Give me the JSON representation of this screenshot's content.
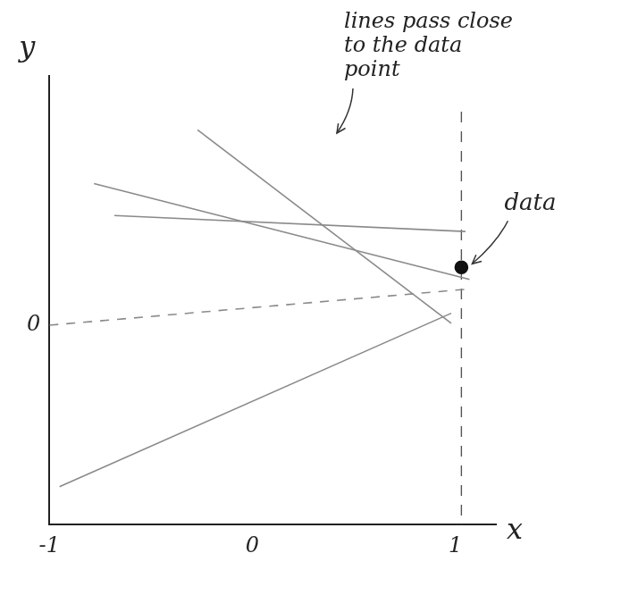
{
  "chart_data": {
    "type": "line",
    "x_label": "x",
    "y_label": "y",
    "xlim": [
      -1,
      1.2
    ],
    "ylim": [
      -1,
      1.25
    ],
    "xticks": [
      -1,
      0,
      1
    ],
    "yticks": [
      0
    ],
    "grid": false,
    "annotations": [
      "lines pass close to the data point",
      "data"
    ],
    "series": [
      {
        "x": [
          -0.27,
          0.98
        ],
        "values": [
          0.98,
          0.01
        ],
        "color": "#8a8a8a",
        "line_style": "solid"
      },
      {
        "x": [
          -0.78,
          1.07
        ],
        "values": [
          0.71,
          0.23
        ],
        "color": "#8a8a8a",
        "line_style": "solid"
      },
      {
        "x": [
          -0.68,
          1.05
        ],
        "values": [
          0.55,
          0.47
        ],
        "color": "#8a8a8a",
        "line_style": "solid"
      },
      {
        "x": [
          -0.95,
          0.98
        ],
        "values": [
          -0.81,
          0.06
        ],
        "color": "#8a8a8a",
        "line_style": "solid"
      },
      {
        "x": [
          -1,
          1.05
        ],
        "values": [
          0,
          0.18
        ],
        "color": "#8a8a8a",
        "line_style": "dashed"
      },
      {
        "type": "scatter",
        "x": [
          1.03
        ],
        "values": [
          0.29
        ],
        "color": "#111111",
        "marker": "circle"
      }
    ]
  }
}
